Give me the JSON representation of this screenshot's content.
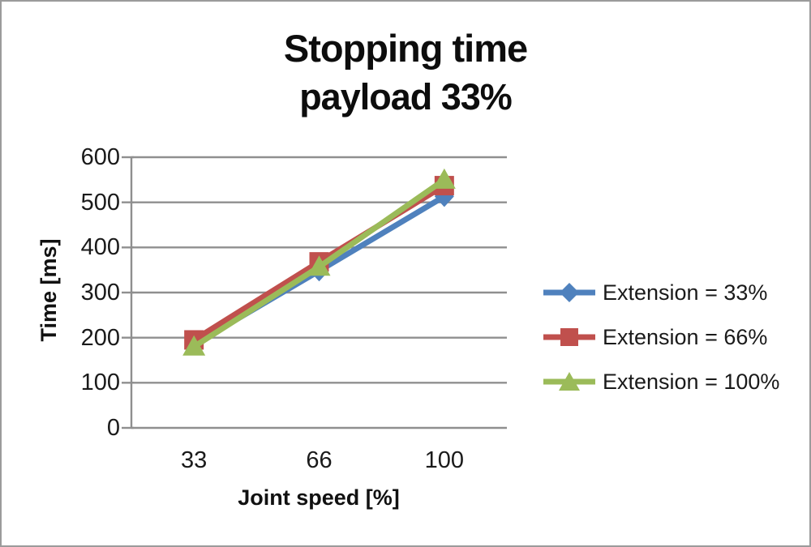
{
  "window": {
    "background": "#ffffff",
    "border_color": "#9b9b9b"
  },
  "chart_data": {
    "type": "line",
    "title": "Stopping time",
    "subtitle": "payload 33%",
    "xlabel": "Joint speed [%]",
    "ylabel": "Time [ms]",
    "categories": [
      "33",
      "66",
      "100"
    ],
    "x_values": [
      33,
      66,
      100
    ],
    "ylim": [
      0,
      600
    ],
    "yticks": [
      0,
      100,
      200,
      300,
      400,
      500,
      600
    ],
    "grid": "horizontal",
    "legend_position": "right",
    "series": [
      {
        "name": "Extension = 33%",
        "marker": "diamond",
        "color": "#4F81BD",
        "values": [
          185,
          348,
          513
        ]
      },
      {
        "name": "Extension = 66%",
        "marker": "square",
        "color": "#C0504D",
        "values": [
          195,
          368,
          537
        ]
      },
      {
        "name": "Extension = 100%",
        "marker": "triangle",
        "color": "#9BBB59",
        "values": [
          180,
          357,
          550
        ]
      }
    ],
    "grid_color": "#8f8f8f",
    "axis_color": "#8f8f8f",
    "text_color": "#1a1a1a"
  }
}
